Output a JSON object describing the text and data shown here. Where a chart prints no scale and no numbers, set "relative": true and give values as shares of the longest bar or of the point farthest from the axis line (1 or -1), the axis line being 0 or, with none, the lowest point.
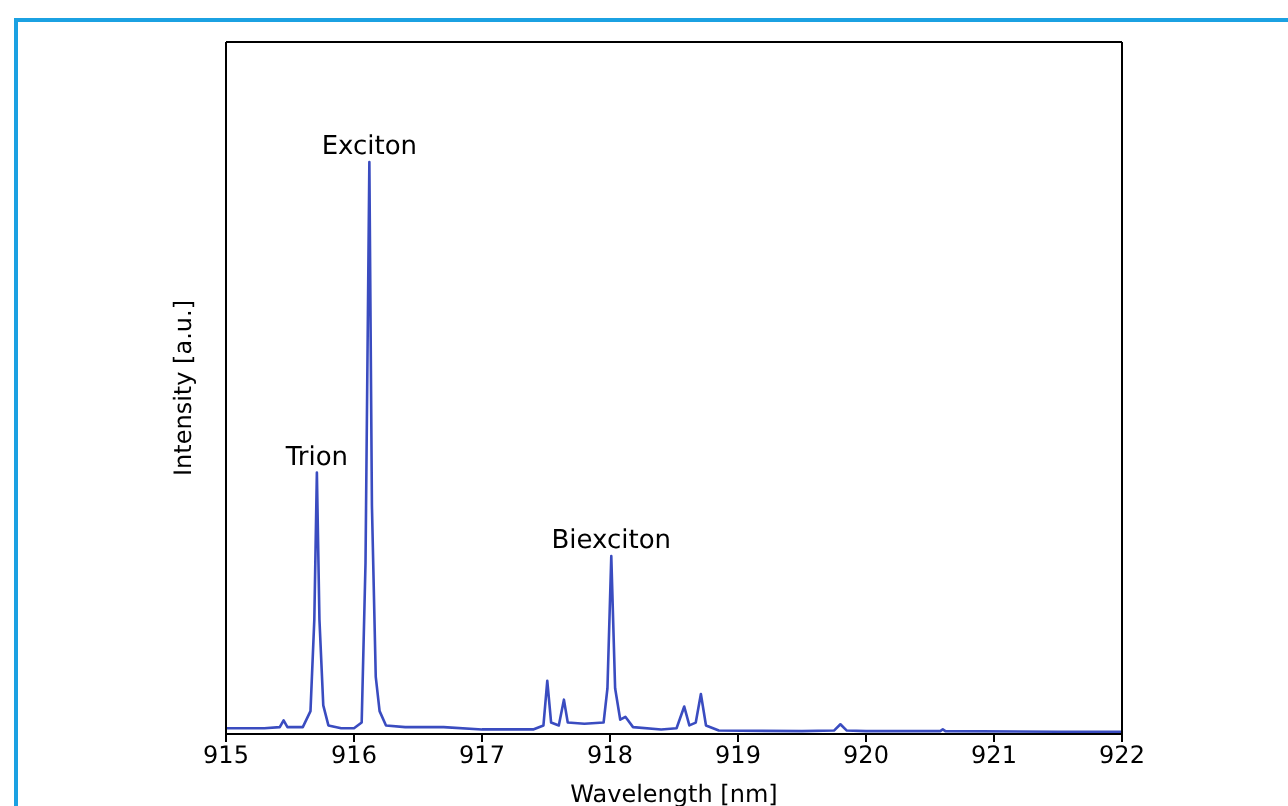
{
  "chart_data": {
    "type": "line",
    "xlabel": "Wavelength [nm]",
    "ylabel": "Intensity [a.u.]",
    "relative": true,
    "xlim": [
      915,
      922
    ],
    "xticks": [
      915,
      916,
      917,
      918,
      919,
      920,
      921,
      922
    ],
    "annotations": [
      {
        "text": "Trion",
        "x": 915.71,
        "y": 0.457
      },
      {
        "text": "Exciton",
        "x": 916.12,
        "y": 1.0
      },
      {
        "text": "Biexciton",
        "x": 918.01,
        "y": 0.311
      }
    ],
    "series": [
      {
        "color": "#3a4cc0",
        "x": [
          915.0,
          915.3,
          915.42,
          915.45,
          915.48,
          915.6,
          915.66,
          915.69,
          915.71,
          915.73,
          915.76,
          915.8,
          915.9,
          916.0,
          916.06,
          916.09,
          916.12,
          916.14,
          916.17,
          916.2,
          916.25,
          916.4,
          916.7,
          917.0,
          917.4,
          917.48,
          917.51,
          917.54,
          917.6,
          917.64,
          917.67,
          917.8,
          917.95,
          917.98,
          918.01,
          918.04,
          918.08,
          918.12,
          918.18,
          918.4,
          918.52,
          918.58,
          918.62,
          918.67,
          918.71,
          918.75,
          918.85,
          919.5,
          919.75,
          919.8,
          919.85,
          920.0,
          920.58,
          920.6,
          920.62,
          921.5,
          922.0
        ],
        "values": [
          0.01,
          0.01,
          0.012,
          0.024,
          0.012,
          0.012,
          0.04,
          0.2,
          0.457,
          0.2,
          0.05,
          0.015,
          0.01,
          0.01,
          0.02,
          0.3,
          1.0,
          0.4,
          0.1,
          0.04,
          0.015,
          0.012,
          0.012,
          0.008,
          0.008,
          0.015,
          0.093,
          0.02,
          0.015,
          0.06,
          0.02,
          0.018,
          0.02,
          0.08,
          0.311,
          0.08,
          0.025,
          0.03,
          0.012,
          0.008,
          0.01,
          0.048,
          0.015,
          0.02,
          0.07,
          0.015,
          0.006,
          0.005,
          0.006,
          0.017,
          0.006,
          0.005,
          0.005,
          0.008,
          0.005,
          0.004,
          0.004
        ]
      }
    ]
  }
}
